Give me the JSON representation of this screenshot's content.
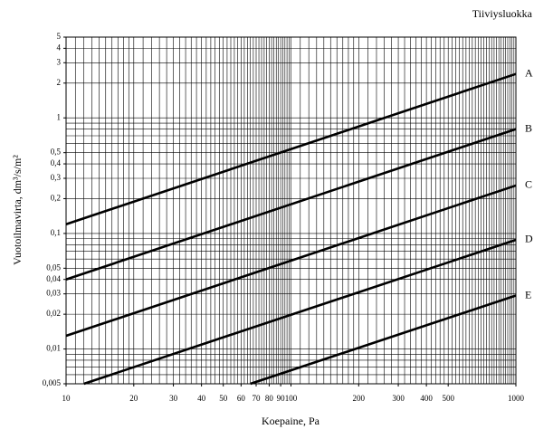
{
  "chart_data": {
    "type": "line",
    "corner_label": "Tiiviysluokka",
    "x_label": "Koepaine, Pa",
    "y_label": "Vuotoilmavirta, dm³/s/m²",
    "log_x": true,
    "log_y": true,
    "grid": true,
    "xlim": [
      10,
      1000
    ],
    "ylim": [
      0.005,
      5
    ],
    "xticks": [
      10,
      20,
      30,
      40,
      50,
      60,
      70,
      80,
      90,
      100,
      200,
      300,
      400,
      500,
      1000
    ],
    "yticks": [
      5,
      4,
      3,
      2,
      1,
      {
        "value": 0.5,
        "label": "0,5"
      },
      {
        "value": 0.4,
        "label": "0,4"
      },
      {
        "value": 0.3,
        "label": "0,3"
      },
      {
        "value": 0.2,
        "label": "0,2"
      },
      {
        "value": 0.1,
        "label": "0,1"
      },
      {
        "value": 0.05,
        "label": "0,05"
      },
      {
        "value": 0.04,
        "label": "0,04"
      },
      {
        "value": 0.03,
        "label": "0,03"
      },
      {
        "value": 0.02,
        "label": "0,02"
      },
      {
        "value": 0.01,
        "label": "0,01"
      },
      {
        "value": 0.005,
        "label": "0,005"
      }
    ],
    "ygrid": [
      0.005,
      0.006,
      0.007,
      0.008,
      0.009,
      0.01,
      0.02,
      0.03,
      0.04,
      0.05,
      0.06,
      0.07,
      0.08,
      0.09,
      0.1,
      0.2,
      0.3,
      0.4,
      0.5,
      0.6,
      0.7,
      0.8,
      0.9,
      1,
      2,
      3,
      4,
      5
    ],
    "xgrid": [
      10,
      11,
      12,
      13,
      14,
      15,
      16,
      17,
      18,
      19,
      20,
      22,
      24,
      26,
      28,
      30,
      32,
      34,
      36,
      38,
      40,
      42,
      44,
      46,
      48,
      50,
      52,
      54,
      56,
      58,
      60,
      62,
      64,
      66,
      68,
      70,
      72,
      74,
      76,
      78,
      80,
      82,
      84,
      86,
      88,
      90,
      92,
      94,
      96,
      98,
      100,
      110,
      120,
      130,
      140,
      150,
      160,
      170,
      180,
      190,
      200,
      220,
      240,
      260,
      280,
      300,
      320,
      340,
      360,
      380,
      400,
      420,
      440,
      460,
      480,
      500,
      520,
      540,
      560,
      580,
      600,
      620,
      640,
      660,
      680,
      700,
      720,
      740,
      760,
      780,
      800,
      820,
      840,
      860,
      880,
      900,
      920,
      940,
      960,
      980,
      1000
    ],
    "color": "#000000",
    "series": [
      {
        "name": "A",
        "x": [
          10,
          1000
        ],
        "values": [
          0.12,
          2.4
        ]
      },
      {
        "name": "B",
        "x": [
          10,
          1000
        ],
        "values": [
          0.04,
          0.8
        ]
      },
      {
        "name": "C",
        "x": [
          10,
          1000
        ],
        "values": [
          0.013,
          0.26
        ]
      },
      {
        "name": "D",
        "x": [
          12,
          1000
        ],
        "values": [
          0.005,
          0.088
        ]
      },
      {
        "name": "E",
        "x": [
          66,
          1000
        ],
        "values": [
          0.005,
          0.029
        ]
      }
    ]
  }
}
